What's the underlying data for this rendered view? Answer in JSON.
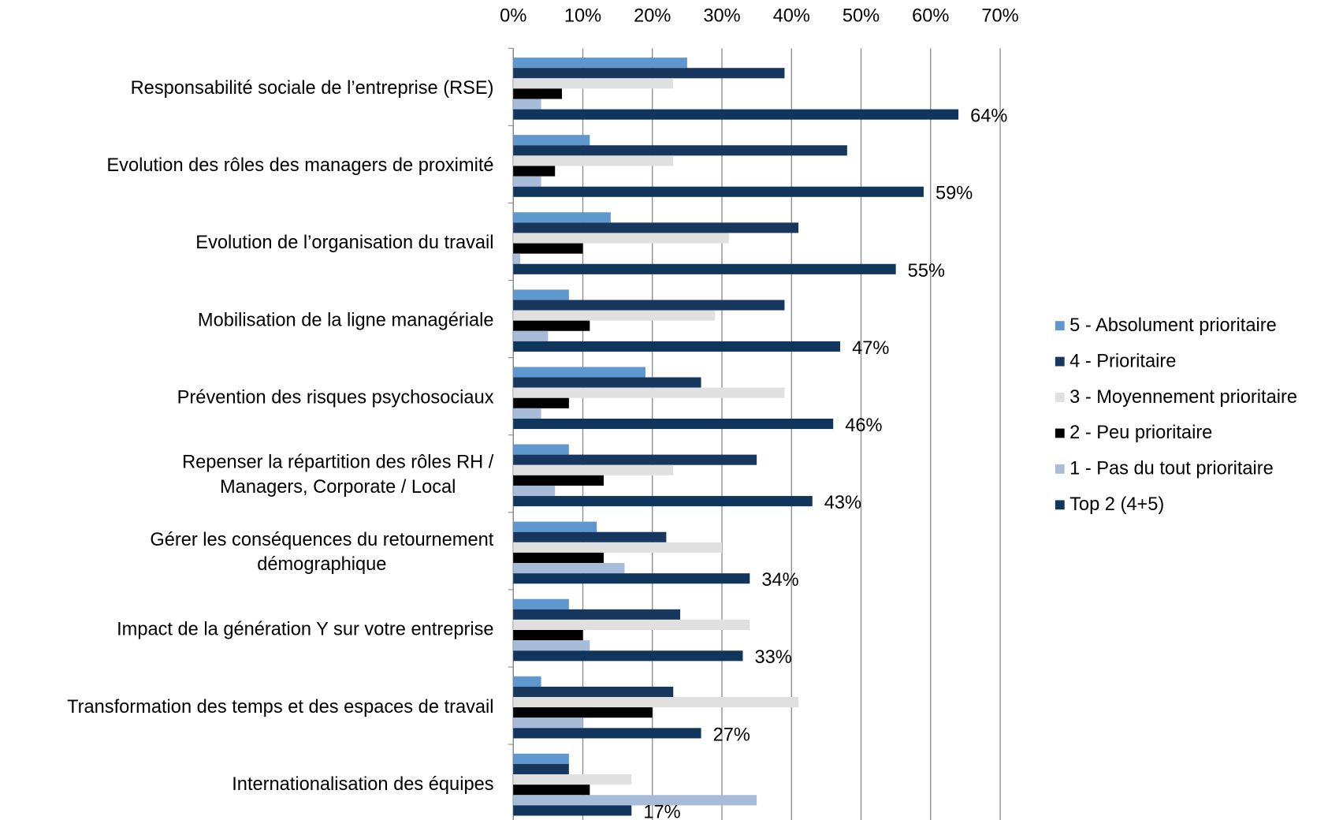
{
  "chart_data": {
    "type": "hbar",
    "categories": [
      "Responsabilité sociale de l’entreprise (RSE)",
      "Evolution des rôles des managers de proximité",
      "Evolution de l’organisation du travail",
      "Mobilisation de la ligne managériale",
      "Prévention des risques psychosociaux",
      "Repenser la répartition des rôles RH /\nManagers, Corporate / Local",
      "Gérer les conséquences du retournement\ndémographique",
      "Impact de la génération Y sur votre entreprise",
      "Transformation des temps et des espaces de travail",
      "Internationalisation des équipes"
    ],
    "series": [
      {
        "name": "5 - Absolument prioritaire",
        "color": "#5f97cf",
        "values": [
          25,
          11,
          14,
          8,
          19,
          8,
          12,
          8,
          4,
          8
        ]
      },
      {
        "name": "4 - Prioritaire",
        "color": "#17375e",
        "values": [
          39,
          48,
          41,
          39,
          27,
          35,
          22,
          24,
          23,
          8
        ]
      },
      {
        "name": "3 - Moyennement prioritaire",
        "color": "#e0e0e0",
        "values": [
          23,
          23,
          31,
          29,
          39,
          23,
          30,
          34,
          41,
          17
        ]
      },
      {
        "name": "2 - Peu prioritaire",
        "color": "#000000",
        "values": [
          7,
          6,
          10,
          11,
          8,
          13,
          13,
          10,
          20,
          11
        ]
      },
      {
        "name": "1 - Pas du tout prioritaire",
        "color": "#a7bcd9",
        "values": [
          4,
          4,
          1,
          5,
          4,
          6,
          16,
          11,
          10,
          35
        ]
      },
      {
        "name": "Top 2 (4+5)",
        "color": "#10365d",
        "values": [
          64,
          59,
          55,
          47,
          46,
          43,
          34,
          33,
          27,
          17
        ],
        "value_labels": [
          "64%",
          "59%",
          "55%",
          "47%",
          "46%",
          "43%",
          "34%",
          "33%",
          "27%",
          "17%"
        ]
      }
    ],
    "xlim": [
      0,
      70
    ],
    "xticks": [
      {
        "value": 0,
        "label": "0%"
      },
      {
        "value": 10,
        "label": "10%"
      },
      {
        "value": 20,
        "label": "20%"
      },
      {
        "value": 30,
        "label": "30%"
      },
      {
        "value": 40,
        "label": "40%"
      },
      {
        "value": 50,
        "label": "50%"
      },
      {
        "value": 60,
        "label": "60%"
      },
      {
        "value": 70,
        "label": "70%"
      }
    ],
    "grid": true,
    "legend": "right"
  }
}
